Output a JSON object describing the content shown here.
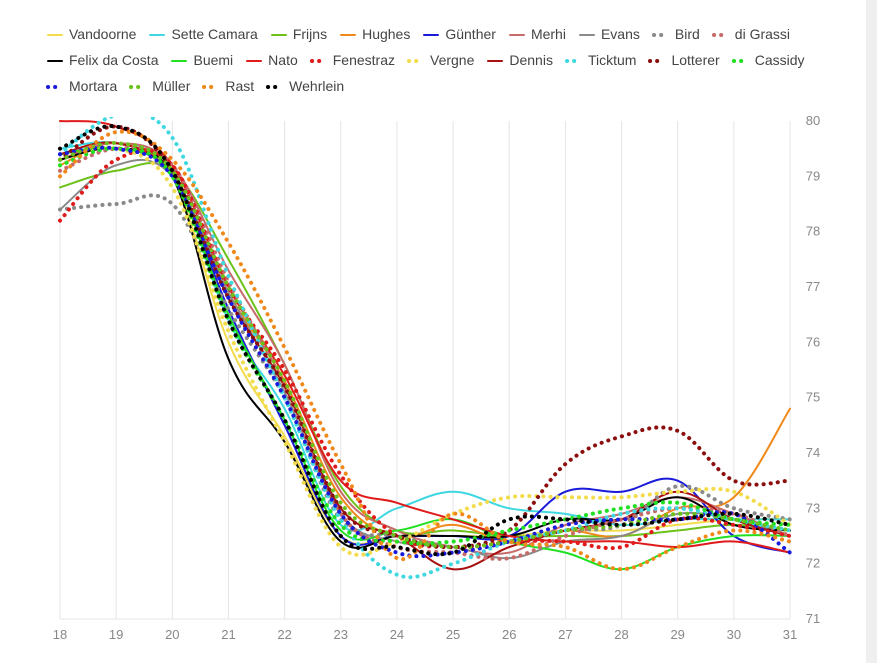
{
  "chart_data": {
    "type": "line",
    "title": "",
    "xlabel": "",
    "ylabel": "",
    "xlim": [
      18,
      31
    ],
    "ylim": [
      71,
      80
    ],
    "grid": "vertical",
    "legend_position": "top",
    "x_ticks": [
      "18",
      "19",
      "20",
      "21",
      "22",
      "23",
      "24",
      "25",
      "26",
      "27",
      "28",
      "29",
      "30",
      "31"
    ],
    "y_ticks": [
      "71",
      "72",
      "73",
      "74",
      "75",
      "76",
      "77",
      "78",
      "79",
      "80"
    ],
    "series": [
      {
        "name": "Vandoorne",
        "color": "#f2dc4b",
        "style": "solid",
        "x": [
          18,
          19,
          20,
          21,
          22,
          23,
          24,
          25,
          26,
          27,
          28,
          29,
          30,
          31
        ],
        "y": [
          79.3,
          79.5,
          79.0,
          76.0,
          74.3,
          72.5,
          72.5,
          72.5,
          72.5,
          72.6,
          72.6,
          72.7,
          72.8,
          72.8
        ]
      },
      {
        "name": "Sette Camara",
        "color": "#3fd8e0",
        "style": "solid",
        "x": [
          18,
          19,
          20,
          21,
          22,
          23,
          24,
          25,
          26,
          27,
          28,
          29,
          30,
          31
        ],
        "y": [
          79.5,
          79.6,
          79.1,
          76.4,
          74.8,
          72.7,
          73.0,
          73.3,
          73.0,
          72.9,
          72.7,
          72.8,
          72.8,
          72.8
        ]
      },
      {
        "name": "Frijns",
        "color": "#6cc21a",
        "style": "solid",
        "x": [
          18,
          19,
          20,
          21,
          22,
          23,
          24,
          25,
          26,
          27,
          28,
          29,
          30,
          31
        ],
        "y": [
          78.8,
          79.1,
          79.1,
          77.5,
          75.6,
          73.4,
          72.6,
          72.6,
          72.5,
          72.5,
          72.5,
          72.6,
          72.7,
          72.6
        ]
      },
      {
        "name": "Hughes",
        "color": "#f0881a",
        "style": "solid",
        "x": [
          18,
          19,
          20,
          21,
          22,
          23,
          24,
          25,
          26,
          27,
          28,
          29,
          30,
          31
        ],
        "y": [
          79.2,
          79.6,
          79.0,
          76.9,
          75.3,
          73.2,
          72.5,
          72.7,
          72.4,
          72.6,
          72.5,
          73.0,
          73.2,
          74.8
        ]
      },
      {
        "name": "Günther",
        "color": "#1a1adb",
        "style": "solid",
        "x": [
          18,
          19,
          20,
          21,
          22,
          23,
          24,
          25,
          26,
          27,
          28,
          29,
          30,
          31
        ],
        "y": [
          79.4,
          79.5,
          79.0,
          76.6,
          74.5,
          72.5,
          72.5,
          72.5,
          72.5,
          73.3,
          73.3,
          73.5,
          72.5,
          72.2
        ]
      },
      {
        "name": "Merhi",
        "color": "#c76a6a",
        "style": "solid",
        "x": [
          18,
          19,
          20,
          21,
          22,
          23,
          24,
          25,
          26,
          27,
          28,
          29,
          30,
          31
        ],
        "y": [
          79.3,
          79.6,
          79.2,
          77.3,
          75.6,
          73.3,
          72.6,
          72.3,
          72.2,
          72.7,
          72.9,
          73.2,
          72.9,
          72.5
        ]
      },
      {
        "name": "Evans",
        "color": "#8a8a8a",
        "style": "solid",
        "x": [
          18,
          19,
          20,
          21,
          22,
          23,
          24,
          25,
          26,
          27,
          28,
          29,
          30,
          31
        ],
        "y": [
          78.4,
          79.2,
          79.0,
          76.9,
          75.1,
          72.9,
          72.4,
          72.3,
          72.1,
          72.4,
          72.5,
          72.9,
          72.8,
          72.5
        ]
      },
      {
        "name": "Bird",
        "color": "#8a8a8a",
        "style": "dotted",
        "x": [
          18,
          19,
          20,
          21,
          22,
          23,
          24,
          25,
          26,
          27,
          28,
          29,
          30,
          31
        ],
        "y": [
          78.4,
          78.5,
          78.5,
          76.6,
          75.0,
          72.8,
          72.5,
          72.3,
          72.4,
          72.6,
          72.7,
          73.4,
          73.0,
          72.8
        ]
      },
      {
        "name": "di Grassi",
        "color": "#c76a6a",
        "style": "dotted",
        "x": [
          18,
          19,
          20,
          21,
          22,
          23,
          24,
          25,
          26,
          27,
          28,
          29,
          30,
          31
        ],
        "y": [
          79.1,
          79.5,
          79.2,
          77.1,
          75.2,
          72.9,
          72.3,
          72.2,
          72.1,
          72.5,
          72.8,
          73.0,
          72.9,
          72.5
        ]
      },
      {
        "name": "Felix da Costa",
        "color": "#000000",
        "style": "solid",
        "x": [
          18,
          19,
          20,
          21,
          22,
          23,
          24,
          25,
          26,
          27,
          28,
          29,
          30,
          31
        ],
        "y": [
          79.3,
          79.5,
          79.0,
          75.7,
          74.2,
          72.4,
          72.5,
          72.5,
          72.5,
          72.8,
          72.8,
          73.2,
          72.7,
          72.6
        ]
      },
      {
        "name": "Buemi",
        "color": "#21e021",
        "style": "solid",
        "x": [
          18,
          19,
          20,
          21,
          22,
          23,
          24,
          25,
          26,
          27,
          28,
          29,
          30,
          31
        ],
        "y": [
          79.4,
          79.5,
          79.0,
          76.5,
          74.6,
          72.6,
          72.6,
          72.8,
          72.4,
          72.2,
          71.9,
          72.3,
          72.5,
          72.5
        ]
      },
      {
        "name": "Nato",
        "color": "#e01b1b",
        "style": "solid",
        "x": [
          18,
          19,
          20,
          21,
          22,
          23,
          24,
          25,
          26,
          27,
          28,
          29,
          30,
          31
        ],
        "y": [
          80.0,
          79.9,
          79.2,
          77.0,
          75.4,
          73.5,
          73.1,
          72.8,
          72.5,
          72.4,
          72.4,
          72.3,
          72.4,
          72.2
        ]
      },
      {
        "name": "Fenestraz",
        "color": "#e01b1b",
        "style": "dotted",
        "x": [
          18,
          19,
          20,
          21,
          22,
          23,
          24,
          25,
          26,
          27,
          28,
          29,
          30,
          31
        ],
        "y": [
          78.2,
          79.3,
          79.2,
          77.0,
          75.5,
          73.6,
          72.5,
          72.3,
          72.4,
          72.4,
          72.3,
          72.8,
          72.7,
          72.5
        ]
      },
      {
        "name": "Vergne",
        "color": "#f2dc4b",
        "style": "dotted",
        "x": [
          18,
          19,
          20,
          21,
          22,
          23,
          24,
          25,
          26,
          27,
          28,
          29,
          30,
          31
        ],
        "y": [
          79.2,
          79.5,
          78.8,
          76.2,
          74.2,
          72.3,
          72.4,
          72.9,
          73.2,
          73.2,
          73.2,
          73.3,
          73.3,
          72.7
        ]
      },
      {
        "name": "Dennis",
        "color": "#a81010",
        "style": "solid",
        "x": [
          18,
          19,
          20,
          21,
          22,
          23,
          24,
          25,
          26,
          27,
          28,
          29,
          30,
          31
        ],
        "y": [
          79.4,
          79.6,
          79.0,
          76.8,
          75.2,
          73.0,
          72.5,
          71.9,
          72.3,
          72.6,
          72.8,
          73.3,
          72.8,
          72.5
        ]
      },
      {
        "name": "Ticktum",
        "color": "#3fd8e0",
        "style": "dotted",
        "x": [
          18,
          19,
          20,
          21,
          22,
          23,
          24,
          25,
          26,
          27,
          28,
          29,
          30,
          31
        ],
        "y": [
          79.4,
          80.1,
          79.7,
          77.2,
          75.0,
          72.8,
          71.8,
          72.0,
          72.4,
          72.6,
          72.9,
          73.0,
          72.8,
          72.6
        ]
      },
      {
        "name": "Lotterer",
        "color": "#8b0f0f",
        "style": "dotted",
        "x": [
          18,
          19,
          20,
          21,
          22,
          23,
          24,
          25,
          26,
          27,
          28,
          29,
          30,
          31
        ],
        "y": [
          79.3,
          79.9,
          79.1,
          76.8,
          75.2,
          73.0,
          72.5,
          72.3,
          72.6,
          73.8,
          74.3,
          74.4,
          73.5,
          73.5
        ]
      },
      {
        "name": "Cassidy",
        "color": "#21e021",
        "style": "dotted",
        "x": [
          18,
          19,
          20,
          21,
          22,
          23,
          24,
          25,
          26,
          27,
          28,
          29,
          30,
          31
        ],
        "y": [
          79.2,
          79.5,
          79.0,
          76.4,
          74.6,
          72.7,
          72.4,
          72.4,
          72.6,
          72.8,
          73.0,
          73.1,
          72.8,
          72.7
        ]
      },
      {
        "name": "Mortara",
        "color": "#1a1adb",
        "style": "dotted",
        "x": [
          18,
          19,
          20,
          21,
          22,
          23,
          24,
          25,
          26,
          27,
          28,
          29,
          30,
          31
        ],
        "y": [
          79.4,
          79.5,
          79.0,
          76.8,
          75.0,
          72.9,
          72.2,
          72.2,
          72.4,
          72.7,
          72.8,
          72.8,
          72.9,
          72.2
        ]
      },
      {
        "name": "Müller",
        "color": "#6cc21a",
        "style": "dotted",
        "x": [
          18,
          19,
          20,
          21,
          22,
          23,
          24,
          25,
          26,
          27,
          28,
          29,
          30,
          31
        ],
        "y": [
          79.3,
          79.6,
          79.1,
          77.0,
          75.3,
          73.1,
          72.5,
          72.3,
          72.4,
          72.6,
          72.7,
          72.9,
          72.8,
          72.6
        ]
      },
      {
        "name": "Rast",
        "color": "#f0881a",
        "style": "dotted",
        "x": [
          18,
          19,
          20,
          21,
          22,
          23,
          24,
          25,
          26,
          27,
          28,
          29,
          30,
          31
        ],
        "y": [
          79.0,
          79.8,
          79.3,
          77.8,
          75.9,
          73.8,
          72.1,
          72.9,
          72.4,
          72.3,
          71.9,
          72.3,
          72.6,
          72.4
        ]
      },
      {
        "name": "Wehrlein",
        "color": "#000000",
        "style": "dotted",
        "x": [
          18,
          19,
          20,
          21,
          22,
          23,
          24,
          25,
          26,
          27,
          28,
          29,
          30,
          31
        ],
        "y": [
          79.5,
          79.9,
          79.1,
          76.4,
          74.6,
          72.5,
          72.3,
          72.2,
          72.8,
          72.8,
          72.7,
          72.8,
          72.9,
          72.7
        ]
      }
    ]
  }
}
